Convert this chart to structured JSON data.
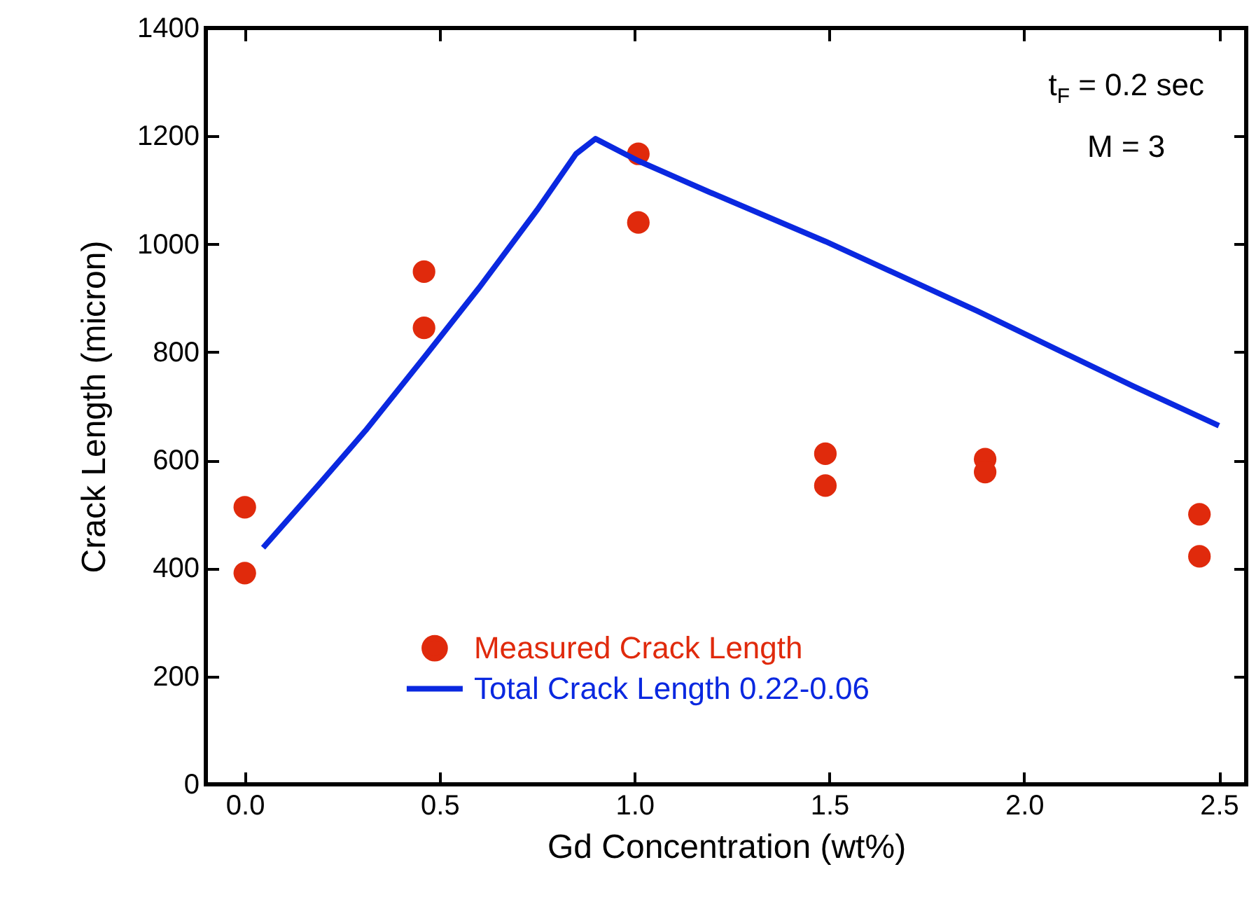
{
  "chart_data": {
    "type": "scatter",
    "xlabel": "Gd Concentration (wt%)",
    "ylabel": "Crack Length (micron)",
    "xlim": [
      -0.1,
      2.57
    ],
    "ylim": [
      0,
      1400
    ],
    "xticks": [
      {
        "value": 0,
        "label": "0.0"
      },
      {
        "value": 0.5,
        "label": "0.5"
      },
      {
        "value": 1,
        "label": "1.0"
      },
      {
        "value": 1.5,
        "label": "1.5"
      },
      {
        "value": 2,
        "label": "2.0"
      },
      {
        "value": 2.5,
        "label": "2.5"
      }
    ],
    "yticks": [
      0,
      200,
      400,
      600,
      800,
      1000,
      1200,
      1400
    ],
    "grid": false,
    "legend": "bottom",
    "annotations": [
      "t$_{F}$ = 0.2 sec",
      "M = 3"
    ],
    "series": [
      {
        "name": "Measured Crack Length",
        "color": "#e02a0c",
        "x": [
          0,
          0,
          0.46,
          0.46,
          1.01,
          1.01,
          1.49,
          1.49,
          1.9,
          1.9,
          2.45,
          2.45
        ],
        "values": [
          513,
          391,
          949,
          845,
          1167,
          1040,
          612,
          553,
          602,
          578,
          500,
          422
        ]
      },
      {
        "name": "Total Crack Length 0.22-0.06",
        "type": "line",
        "color": "#0a28e0",
        "x": [
          0.047,
          0.19,
          0.31,
          0.46,
          0.6,
          0.75,
          0.85,
          0.9,
          1.01,
          1.19,
          1.49,
          1.88,
          2.28,
          2.5
        ],
        "values": [
          438,
          555,
          655,
          790,
          918,
          1063,
          1167,
          1195,
          1154,
          1097,
          1005,
          876,
          737,
          664
        ]
      }
    ]
  }
}
